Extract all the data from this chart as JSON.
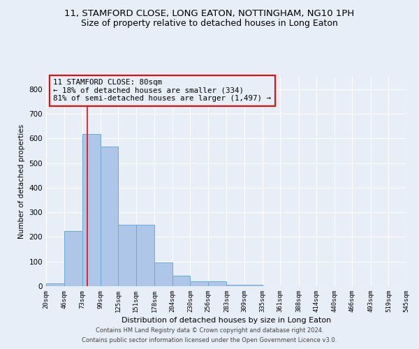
{
  "title1": "11, STAMFORD CLOSE, LONG EATON, NOTTINGHAM, NG10 1PH",
  "title2": "Size of property relative to detached houses in Long Eaton",
  "xlabel": "Distribution of detached houses by size in Long Eaton",
  "ylabel": "Number of detached properties",
  "footer1": "Contains HM Land Registry data © Crown copyright and database right 2024.",
  "footer2": "Contains public sector information licensed under the Open Government Licence v3.0.",
  "annotation_line1": "11 STAMFORD CLOSE: 80sqm",
  "annotation_line2": "← 18% of detached houses are smaller (334)",
  "annotation_line3": "81% of semi-detached houses are larger (1,497) →",
  "bar_color": "#aec6e8",
  "bar_edge_color": "#6aaad4",
  "bar_heights": [
    10,
    224,
    617,
    567,
    250,
    250,
    97,
    43,
    20,
    20,
    7,
    5,
    0,
    0,
    0,
    0,
    0,
    0,
    0,
    0
  ],
  "bin_edges": [
    20,
    46,
    73,
    99,
    125,
    151,
    178,
    204,
    230,
    256,
    283,
    309,
    335,
    361,
    388,
    414,
    440,
    466,
    493,
    519,
    545
  ],
  "tick_labels": [
    "20sqm",
    "46sqm",
    "73sqm",
    "99sqm",
    "125sqm",
    "151sqm",
    "178sqm",
    "204sqm",
    "230sqm",
    "256sqm",
    "283sqm",
    "309sqm",
    "335sqm",
    "361sqm",
    "388sqm",
    "414sqm",
    "440sqm",
    "466sqm",
    "493sqm",
    "519sqm",
    "545sqm"
  ],
  "red_line_x": 80,
  "ylim": [
    0,
    850
  ],
  "yticks": [
    0,
    100,
    200,
    300,
    400,
    500,
    600,
    700,
    800
  ],
  "bg_color": "#e8eef7",
  "plot_bg_color": "#e8eef7",
  "grid_color": "#ffffff",
  "title1_fontsize": 9.5,
  "title2_fontsize": 9
}
